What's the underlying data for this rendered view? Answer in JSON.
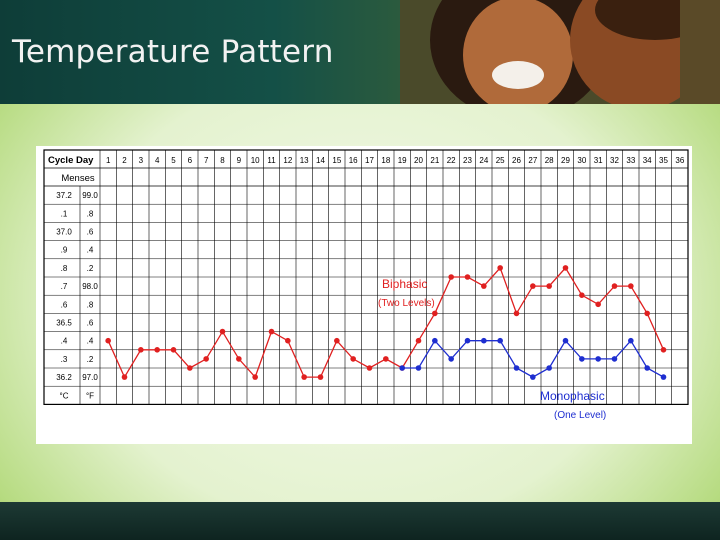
{
  "slide": {
    "title": "Temperature Pattern"
  },
  "chart_data": {
    "type": "line",
    "title": "",
    "x_header": "Cycle Day",
    "menses_label": "Menses",
    "x": [
      1,
      2,
      3,
      4,
      5,
      6,
      7,
      8,
      9,
      10,
      11,
      12,
      13,
      14,
      15,
      16,
      17,
      18,
      19,
      20,
      21,
      22,
      23,
      24,
      25,
      26,
      27,
      28,
      29,
      30,
      31,
      32,
      33,
      34,
      35,
      36
    ],
    "y_labels_c": [
      "37.2",
      ".1",
      "37.0",
      ".9",
      ".8",
      ".7",
      ".6",
      "36.5",
      ".4",
      ".3",
      "36.2"
    ],
    "y_labels_f": [
      "99.0",
      ".8",
      ".6",
      ".4",
      ".2",
      "98.0",
      ".8",
      ".6",
      ".4",
      ".2",
      "97.0"
    ],
    "y_units": {
      "c": "°C",
      "f": "°F"
    },
    "y_ticks_c": [
      37.2,
      37.1,
      37.0,
      36.9,
      36.8,
      36.7,
      36.6,
      36.5,
      36.4,
      36.3,
      36.2
    ],
    "ylim": [
      36.2,
      37.2
    ],
    "series": [
      {
        "name": "Biphasic",
        "sublabel": "(Two Levels)",
        "color": "#e02020",
        "x": [
          1,
          2,
          3,
          4,
          5,
          6,
          7,
          8,
          9,
          10,
          11,
          12,
          13,
          14,
          15,
          16,
          17,
          18,
          19,
          20,
          21,
          22,
          23,
          24,
          25,
          26,
          27,
          28,
          29,
          30,
          31,
          32,
          33,
          34,
          35
        ],
        "y": [
          36.4,
          36.2,
          36.35,
          36.35,
          36.35,
          36.25,
          36.3,
          36.45,
          36.3,
          36.2,
          36.45,
          36.4,
          36.2,
          36.2,
          36.4,
          36.3,
          36.25,
          36.3,
          36.25,
          36.4,
          36.55,
          36.75,
          36.75,
          36.7,
          36.8,
          36.55,
          36.7,
          36.7,
          36.8,
          36.65,
          36.6,
          36.7,
          36.7,
          36.55,
          36.35
        ],
        "y_unit": "°C"
      },
      {
        "name": "Monophasic",
        "sublabel": "(One Level)",
        "color": "#1e2ed0",
        "x": [
          19,
          20,
          21,
          22,
          23,
          24,
          25,
          26,
          27,
          28,
          29,
          30,
          31,
          32,
          33,
          34,
          35
        ],
        "y": [
          36.25,
          36.25,
          36.4,
          36.3,
          36.4,
          36.4,
          36.4,
          36.25,
          36.2,
          36.25,
          36.4,
          36.3,
          36.3,
          36.3,
          36.4,
          36.25,
          36.2
        ],
        "y_unit": "°C"
      }
    ],
    "grid": true
  }
}
